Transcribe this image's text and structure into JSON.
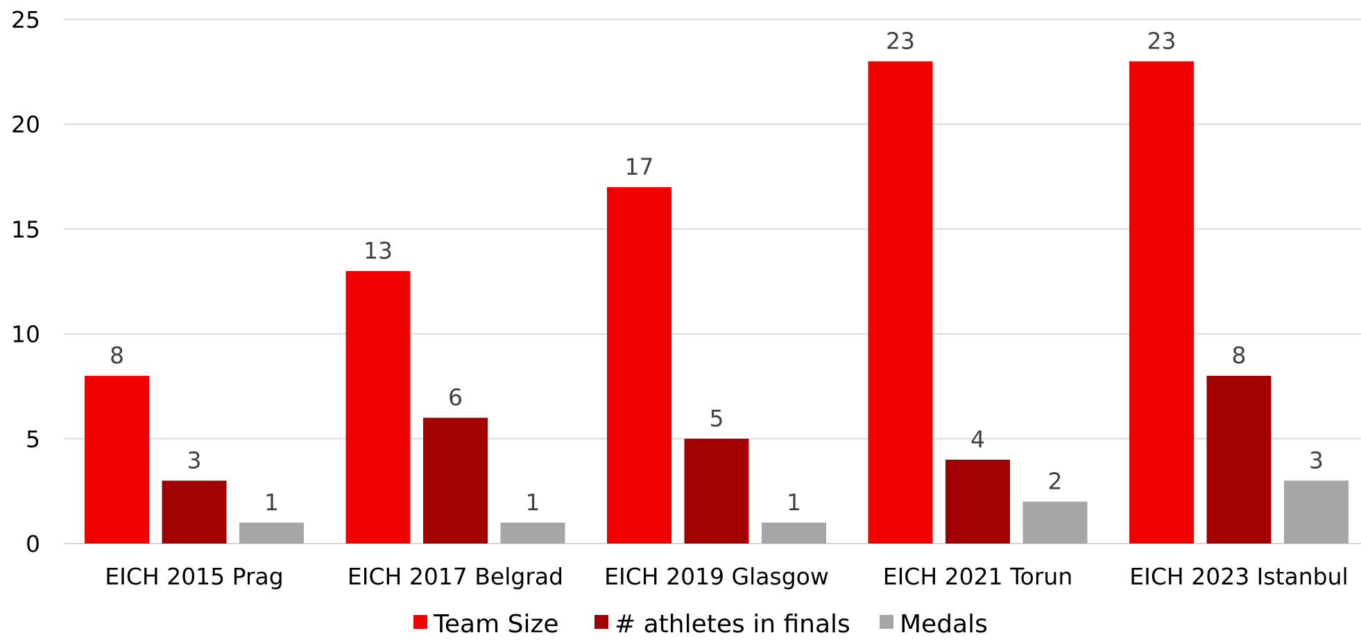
{
  "chart_data": {
    "type": "bar",
    "categories": [
      "EICH 2015 Prag",
      "EICH 2017 Belgrad",
      "EICH 2019 Glasgow",
      "EICH 2021 Torun",
      "EICH 2023 Istanbul"
    ],
    "series": [
      {
        "name": "Team Size",
        "values": [
          8,
          13,
          17,
          23,
          23
        ],
        "color": "#f20000"
      },
      {
        "name": "# athletes in finals",
        "values": [
          3,
          6,
          5,
          4,
          8
        ],
        "color": "#a00000"
      },
      {
        "name": "Medals",
        "values": [
          1,
          1,
          1,
          2,
          3
        ],
        "color": "#a6a6a6"
      }
    ],
    "y_ticks": [
      0,
      5,
      10,
      15,
      20,
      25
    ],
    "ylim": [
      0,
      25
    ],
    "grid": true,
    "legend_position": "bottom",
    "data_labels": true
  }
}
